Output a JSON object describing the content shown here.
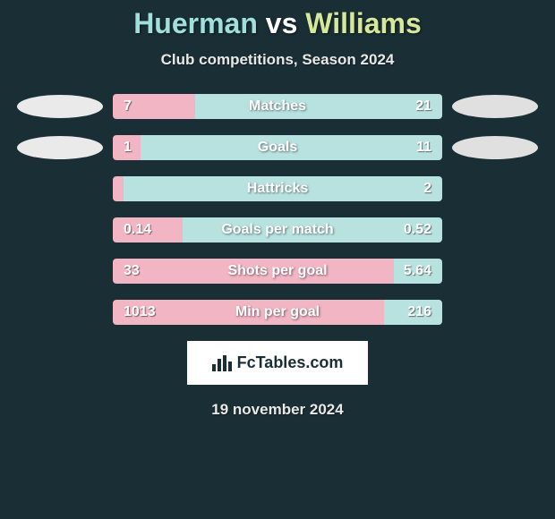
{
  "title": {
    "player1": "Huerman",
    "vs": "vs",
    "player2": "Williams",
    "p1_color": "#9fe0dd",
    "p2_color": "#d6e89a"
  },
  "subtitle": "Club competitions, Season 2024",
  "colors": {
    "bg": "#1a2e35",
    "bar_left": "#f2b5c4",
    "bar_right": "#b8e2e0",
    "logo_left": "#eaeaea",
    "logo_right": "#e0e0e0"
  },
  "stats": [
    {
      "label": "Matches",
      "left_val": "7",
      "right_val": "21",
      "left_pct": 25.0,
      "right_pct": 75.0,
      "show_logos": true
    },
    {
      "label": "Goals",
      "left_val": "1",
      "right_val": "11",
      "left_pct": 8.3,
      "right_pct": 91.7,
      "show_logos": true
    },
    {
      "label": "Hattricks",
      "left_val": "0",
      "right_val": "2",
      "left_pct": 2.0,
      "right_pct": 98.0,
      "show_logos": false
    },
    {
      "label": "Goals per match",
      "left_val": "0.14",
      "right_val": "0.52",
      "left_pct": 21.2,
      "right_pct": 78.8,
      "show_logos": false
    },
    {
      "label": "Shots per goal",
      "left_val": "33",
      "right_val": "5.64",
      "left_pct": 85.4,
      "right_pct": 14.6,
      "show_logos": false
    },
    {
      "label": "Min per goal",
      "left_val": "1013",
      "right_val": "216",
      "left_pct": 82.4,
      "right_pct": 17.6,
      "show_logos": false
    }
  ],
  "footer": {
    "brand": "FcTables.com",
    "date": "19 november 2024"
  }
}
